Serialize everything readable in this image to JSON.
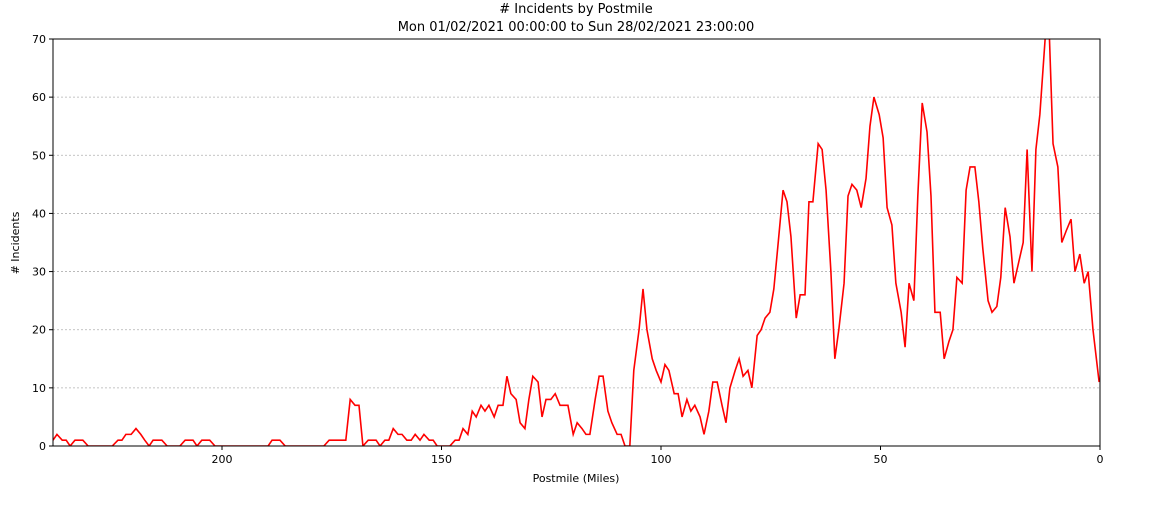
{
  "chart_data": {
    "type": "line",
    "title": "# Incidents by Postmile",
    "subtitle": "Mon 01/02/2021 00:00:00 to Sun 28/02/2021 23:00:00",
    "x_label": "Postmile (Miles)",
    "y_label": "# Incidents",
    "xlim": [
      238.5,
      0
    ],
    "xticks": [
      200,
      150,
      100,
      50,
      0
    ],
    "ylim": [
      0,
      70
    ],
    "yticks": [
      0,
      10,
      20,
      30,
      40,
      50,
      60,
      70
    ],
    "grid": true,
    "x": [
      238.5,
      237.6,
      236.4,
      235.5,
      234.6,
      233.5,
      231.7,
      230.5,
      225,
      223.7,
      222.8,
      221.9,
      220.7,
      219.6,
      218.5,
      217.6,
      216.6,
      215.7,
      213.7,
      212.5,
      209.6,
      208.4,
      206.6,
      205.7,
      204.6,
      202.8,
      201.6,
      189.5,
      188.6,
      186.8,
      185.6,
      176.8,
      175.6,
      171.8,
      170.8,
      169.7,
      168.8,
      167.9,
      166.7,
      164.9,
      164,
      162.9,
      162,
      161,
      159.9,
      159,
      157.9,
      156.9,
      156,
      154.9,
      154,
      152.8,
      151.9,
      151,
      148.1,
      146.9,
      146,
      145.1,
      144,
      143,
      142.1,
      141,
      140.1,
      139.2,
      138,
      137.1,
      136,
      135.1,
      134.2,
      133,
      132.1,
      131,
      130.1,
      129.2,
      128,
      127.1,
      126.2,
      125.1,
      124.1,
      123,
      122.1,
      121.2,
      120,
      119.1,
      118,
      117.1,
      116.2,
      115,
      114.1,
      113.2,
      112.1,
      111.2,
      110,
      109.1,
      108.2,
      107.1,
      106.2,
      105,
      104.1,
      103.2,
      102,
      101.1,
      100,
      99.1,
      98.2,
      97,
      96.1,
      95.2,
      94.1,
      93.2,
      92.3,
      91.1,
      90.2,
      89.1,
      88.2,
      87.2,
      86.1,
      85.2,
      84.3,
      83.1,
      82.2,
      81.3,
      80.2,
      79.3,
      78.1,
      77.2,
      76.3,
      75.2,
      74.3,
      73.3,
      72.2,
      71.3,
      70.4,
      69.2,
      68.3,
      67.2,
      66.3,
      65.4,
      64.2,
      63.3,
      62.4,
      61.3,
      60.4,
      59.5,
      58.3,
      57.4,
      56.5,
      55.4,
      54.4,
      53.3,
      52.4,
      51.5,
      50.3,
      49.4,
      48.5,
      47.4,
      46.5,
      45.3,
      44.4,
      43.5,
      42.4,
      41.5,
      40.5,
      39.4,
      38.5,
      37.6,
      36.4,
      35.5,
      34.4,
      33.5,
      32.6,
      31.4,
      30.5,
      29.6,
      28.5,
      27.6,
      26.7,
      25.5,
      24.6,
      23.5,
      22.6,
      21.6,
      20.5,
      19.6,
      18.7,
      17.5,
      16.6,
      15.5,
      14.6,
      13.7,
      12.5,
      11.6,
      10.7,
      9.6,
      8.7,
      7.7,
      6.6,
      5.7,
      4.6,
      3.6,
      2.7,
      1.6,
      0.2
    ],
    "series": [
      {
        "color": "#ff0000",
        "values": [
          1,
          2,
          1,
          1,
          0,
          1,
          1,
          0,
          0,
          1,
          1,
          2,
          2,
          3,
          2,
          1,
          0,
          1,
          1,
          0,
          0,
          1,
          1,
          0,
          1,
          1,
          0,
          0,
          1,
          1,
          0,
          0,
          1,
          1,
          8,
          7,
          7,
          0,
          1,
          1,
          0,
          1,
          1,
          3,
          2,
          2,
          1,
          1,
          2,
          1,
          2,
          1,
          1,
          0,
          0,
          1,
          1,
          3,
          2,
          6,
          5,
          7,
          6,
          7,
          5,
          7,
          7,
          12,
          9,
          8,
          4,
          3,
          8,
          12,
          11,
          5,
          8,
          8,
          9,
          7,
          7,
          7,
          2,
          4,
          3,
          2,
          2,
          8,
          12,
          12,
          6,
          4,
          2,
          2,
          0,
          0,
          13,
          20,
          27,
          20,
          15,
          13,
          11,
          14,
          13,
          9,
          9,
          5,
          8,
          6,
          7,
          5,
          2,
          6,
          11,
          11,
          7,
          4,
          10,
          13,
          15,
          12,
          13,
          10,
          19,
          20,
          22,
          23,
          27,
          35,
          44,
          42,
          36,
          22,
          26,
          26,
          42,
          42,
          52,
          51,
          44,
          30,
          15,
          20,
          28,
          43,
          45,
          44,
          41,
          46,
          55,
          60,
          57,
          53,
          41,
          38,
          28,
          23,
          17,
          28,
          25,
          43,
          59,
          54,
          43,
          23,
          23,
          15,
          18,
          20,
          29,
          28,
          44,
          48,
          48,
          42,
          34,
          25,
          23,
          24,
          29,
          41,
          36,
          28,
          31,
          35,
          51,
          30,
          51,
          57,
          70,
          72,
          52,
          48,
          35,
          37,
          39,
          30,
          33,
          28,
          30,
          20,
          11
        ]
      }
    ]
  }
}
